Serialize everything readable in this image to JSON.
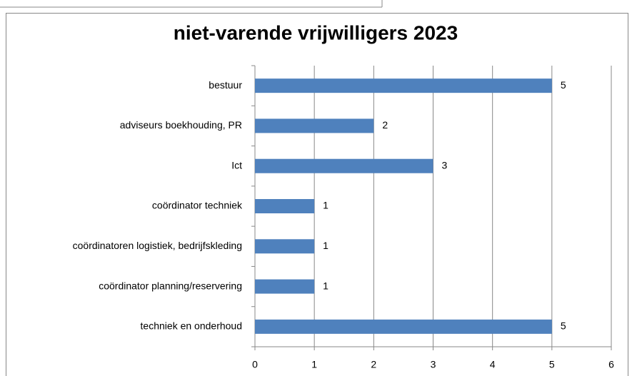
{
  "chart_data": {
    "type": "bar",
    "orientation": "horizontal",
    "title": "niet-varende vrijwilligers 2023",
    "categories": [
      "bestuur",
      "adviseurs boekhouding, PR",
      "Ict",
      "coördinator techniek",
      "coördinatoren logistiek, bedrijfskleding",
      "coördinator planning/reservering",
      "techniek en onderhoud"
    ],
    "values": [
      5,
      2,
      3,
      1,
      1,
      1,
      5
    ],
    "color": "#4f81bd",
    "xlim": [
      0,
      6
    ],
    "xticks": [
      0,
      1,
      2,
      3,
      4,
      5,
      6
    ],
    "grid": true
  }
}
